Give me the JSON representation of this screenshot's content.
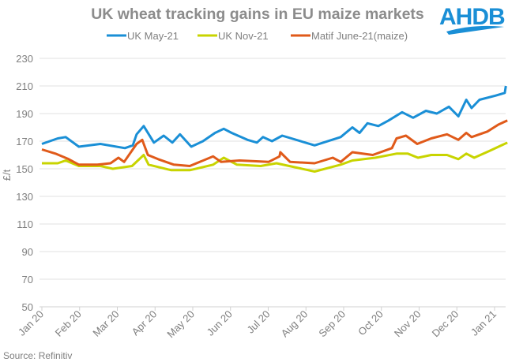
{
  "logo_text": "AHDB",
  "source": "Source: Refinitiv",
  "chart_data": {
    "type": "line",
    "title": "UK wheat tracking gains in EU maize markets",
    "xlabel": "",
    "ylabel": "£/t",
    "ylim": [
      50,
      230
    ],
    "yticks": [
      50,
      70,
      90,
      110,
      130,
      150,
      170,
      190,
      210,
      230
    ],
    "xlim": [
      0,
      12.35
    ],
    "x_unit": "months since 1 Jan 2020",
    "xtick_labels": [
      "Jan 20",
      "Feb 20",
      "Mar 20",
      "Apr 20",
      "May 20",
      "Jun 20",
      "Jul 20",
      "Aug 20",
      "Sep 20",
      "Oct 20",
      "Nov 20",
      "Dec 20",
      "Jan 21"
    ],
    "grid": true,
    "legend_position": "top",
    "series": [
      {
        "name": "UK May-21",
        "color": "#1a8fd6",
        "points": [
          [
            0,
            168
          ],
          [
            0.42,
            172
          ],
          [
            0.63,
            173
          ],
          [
            0.98,
            166
          ],
          [
            1.55,
            168
          ],
          [
            2.2,
            165
          ],
          [
            2.41,
            167
          ],
          [
            2.51,
            175
          ],
          [
            2.7,
            181
          ],
          [
            2.97,
            169
          ],
          [
            3.23,
            174
          ],
          [
            3.46,
            169
          ],
          [
            3.66,
            175
          ],
          [
            3.96,
            166
          ],
          [
            4.27,
            170
          ],
          [
            4.59,
            176
          ],
          [
            4.82,
            179
          ],
          [
            5.03,
            176
          ],
          [
            5.45,
            171
          ],
          [
            5.7,
            169
          ],
          [
            5.86,
            173
          ],
          [
            6.1,
            170
          ],
          [
            6.37,
            174
          ],
          [
            7.23,
            167
          ],
          [
            7.92,
            173
          ],
          [
            8.23,
            180
          ],
          [
            8.42,
            176
          ],
          [
            8.63,
            183
          ],
          [
            8.92,
            181
          ],
          [
            9.19,
            185
          ],
          [
            9.55,
            191
          ],
          [
            9.84,
            187
          ],
          [
            10.18,
            192
          ],
          [
            10.47,
            190
          ],
          [
            10.79,
            195
          ],
          [
            11.04,
            188
          ],
          [
            11.25,
            200
          ],
          [
            11.39,
            194
          ],
          [
            11.6,
            200
          ],
          [
            12.02,
            203
          ],
          [
            12.27,
            205
          ],
          [
            12.3,
            210
          ]
        ]
      },
      {
        "name": "UK Nov-21",
        "color": "#c8d400",
        "points": [
          [
            0,
            154
          ],
          [
            0.42,
            154
          ],
          [
            0.63,
            156
          ],
          [
            0.98,
            152
          ],
          [
            1.55,
            152
          ],
          [
            1.88,
            150
          ],
          [
            2.39,
            152
          ],
          [
            2.7,
            160
          ],
          [
            2.83,
            153
          ],
          [
            3.43,
            149
          ],
          [
            3.92,
            149
          ],
          [
            4.54,
            153
          ],
          [
            4.82,
            158
          ],
          [
            5.17,
            153
          ],
          [
            5.8,
            152
          ],
          [
            6.22,
            154
          ],
          [
            7.23,
            148
          ],
          [
            7.92,
            153
          ],
          [
            8.23,
            156
          ],
          [
            8.84,
            158
          ],
          [
            9.4,
            161
          ],
          [
            9.7,
            161
          ],
          [
            9.97,
            158
          ],
          [
            10.32,
            160
          ],
          [
            10.74,
            160
          ],
          [
            11.04,
            157
          ],
          [
            11.25,
            161
          ],
          [
            11.46,
            158
          ],
          [
            11.87,
            163
          ],
          [
            12.34,
            169
          ]
        ]
      },
      {
        "name": "Matif June-21(maize)",
        "color": "#e05a1a",
        "points": [
          [
            0,
            164
          ],
          [
            0.36,
            161
          ],
          [
            0.71,
            157
          ],
          [
            0.98,
            153
          ],
          [
            1.47,
            153
          ],
          [
            1.82,
            154
          ],
          [
            2.03,
            158
          ],
          [
            2.18,
            155
          ],
          [
            2.51,
            168
          ],
          [
            2.66,
            171
          ],
          [
            2.81,
            160
          ],
          [
            3.08,
            157
          ],
          [
            3.5,
            153
          ],
          [
            3.92,
            152
          ],
          [
            4.54,
            159
          ],
          [
            4.75,
            155
          ],
          [
            5.24,
            156
          ],
          [
            6.01,
            155
          ],
          [
            6.3,
            159
          ],
          [
            6.32,
            162
          ],
          [
            6.58,
            155
          ],
          [
            7.23,
            154
          ],
          [
            7.71,
            158
          ],
          [
            7.92,
            155
          ],
          [
            8.23,
            162
          ],
          [
            8.77,
            160
          ],
          [
            9.28,
            165
          ],
          [
            9.4,
            172
          ],
          [
            9.65,
            174
          ],
          [
            9.95,
            168
          ],
          [
            10.32,
            172
          ],
          [
            10.74,
            175
          ],
          [
            11.04,
            171
          ],
          [
            11.25,
            176
          ],
          [
            11.39,
            173
          ],
          [
            11.81,
            177
          ],
          [
            12.1,
            182
          ],
          [
            12.34,
            185
          ]
        ]
      }
    ]
  }
}
